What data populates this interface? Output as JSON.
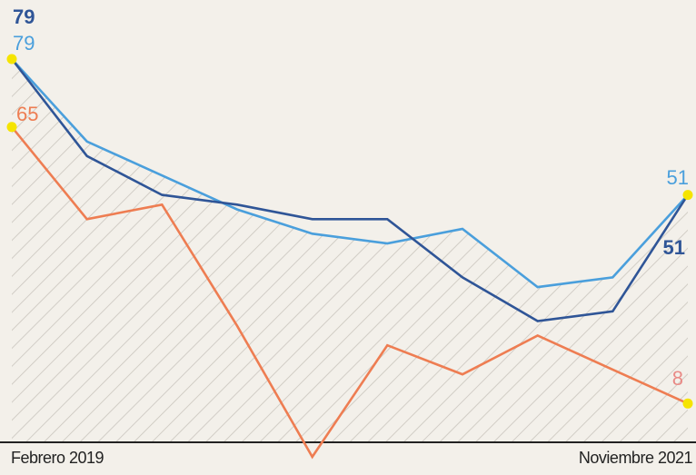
{
  "chart_data": {
    "type": "line",
    "x_start_label": "Febrero 2019",
    "x_end_label": "Noviembre 2021",
    "ylim": [
      0,
      85
    ],
    "colors": {
      "dark": "#2f5597",
      "light": "#4a9fdc",
      "orange": "#ee7d52",
      "marker": "#f5e400",
      "hatch": "#c9c5bd",
      "axis": "#222222"
    },
    "series": [
      {
        "id": "dark",
        "values": [
          79,
          59,
          51,
          49,
          46,
          46,
          34,
          25,
          27,
          51
        ],
        "start_label": "79",
        "end_label": "51"
      },
      {
        "id": "light",
        "values": [
          79,
          62,
          55,
          48,
          43,
          41,
          44,
          32,
          34,
          51
        ],
        "start_label": "79",
        "end_label": "51"
      },
      {
        "id": "orange",
        "values": [
          65,
          46,
          49,
          24,
          -3,
          20,
          14,
          22,
          15,
          8
        ],
        "start_label": "65",
        "end_label": "8"
      }
    ]
  }
}
